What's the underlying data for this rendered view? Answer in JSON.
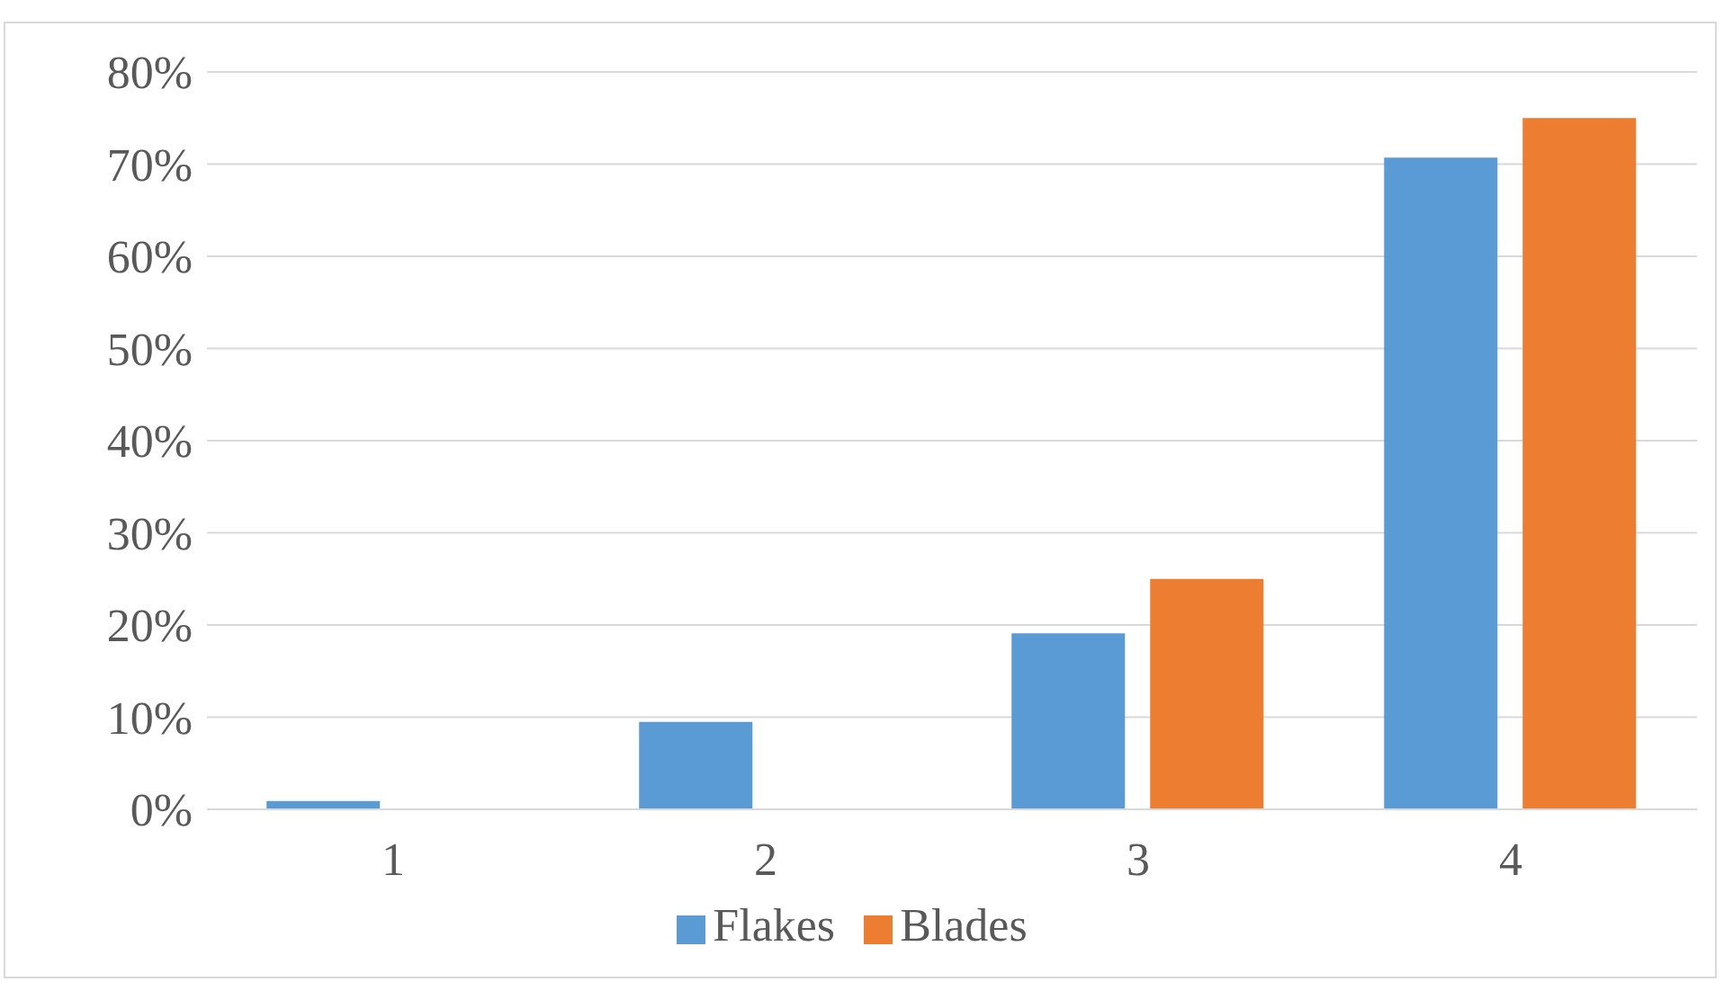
{
  "chart_data": {
    "type": "bar",
    "categories": [
      "1",
      "2",
      "3",
      "4"
    ],
    "series": [
      {
        "name": "Flakes",
        "color": "#5b9bd5",
        "values": [
          0.9,
          9.5,
          19.1,
          70.7
        ]
      },
      {
        "name": "Blades",
        "color": "#ed7d31",
        "values": [
          0,
          0,
          25,
          75
        ]
      }
    ],
    "ylim": [
      0,
      80
    ],
    "yticks": [
      {
        "value": 0,
        "label": "0%"
      },
      {
        "value": 10,
        "label": "10%"
      },
      {
        "value": 20,
        "label": "20%"
      },
      {
        "value": 30,
        "label": "30%"
      },
      {
        "value": 40,
        "label": "40%"
      },
      {
        "value": 50,
        "label": "50%"
      },
      {
        "value": 60,
        "label": "60%"
      },
      {
        "value": 70,
        "label": "70%"
      },
      {
        "value": 80,
        "label": "80%"
      }
    ],
    "grid": "y",
    "legend": "bottom"
  }
}
